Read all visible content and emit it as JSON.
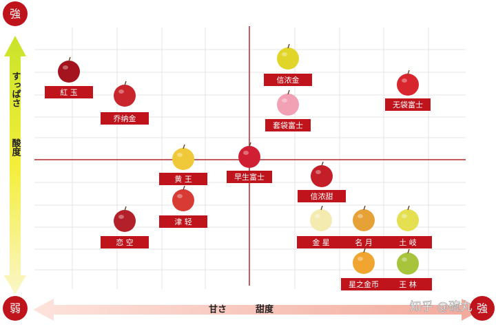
{
  "corners": {
    "top_left": "強",
    "bottom_left": "弱",
    "bottom_right": "強"
  },
  "y_axis": {
    "label": "すっぱさ",
    "label_cn": "酸度"
  },
  "x_axis": {
    "label": "甘さ",
    "label_cn": "甜度"
  },
  "watermark": "知乎 @碗丸",
  "nodes": [
    {
      "label": "紅 玉"
    },
    {
      "label": "乔纳金"
    },
    {
      "label": "黄 王"
    },
    {
      "label": "津 轻"
    },
    {
      "label": "恋 空"
    },
    {
      "label": "早生富士"
    },
    {
      "label": "信浓金"
    },
    {
      "label": "套袋富士"
    },
    {
      "label": "无袋富士"
    },
    {
      "label": "信浓甜"
    },
    {
      "label": "金 星"
    },
    {
      "label": "名 月"
    },
    {
      "label": "土 岐"
    },
    {
      "label": "星之金币"
    },
    {
      "label": "王 林"
    }
  ]
}
